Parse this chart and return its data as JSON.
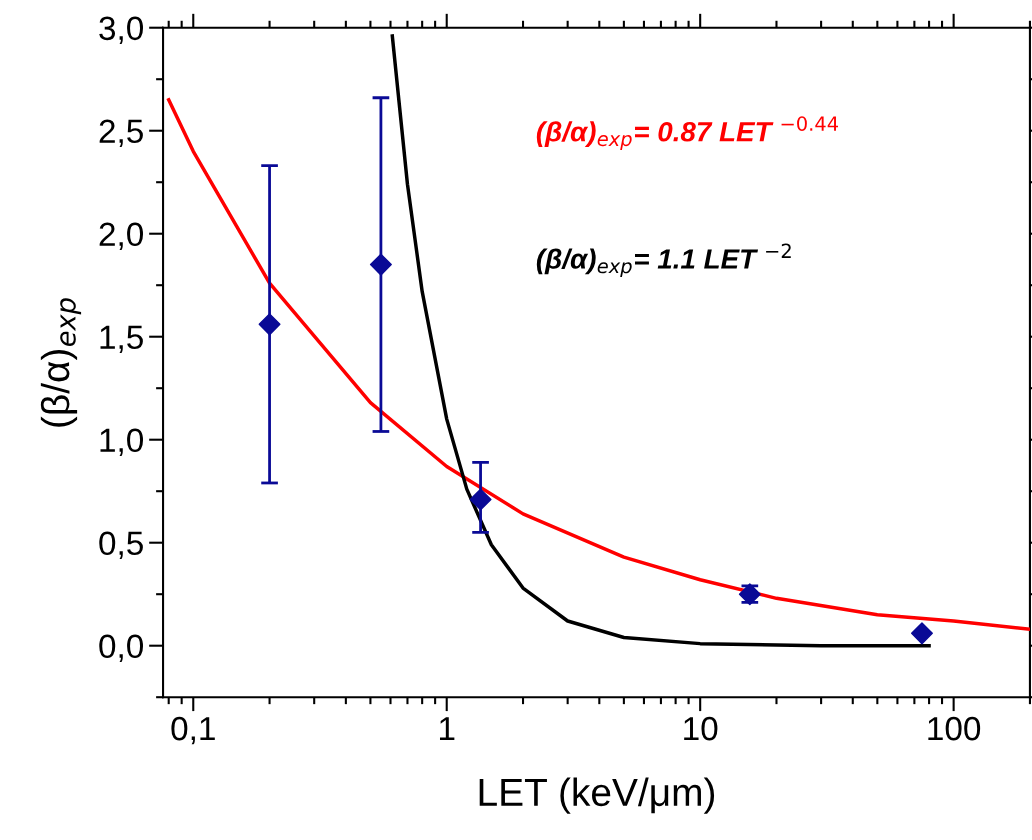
{
  "chart_data": {
    "type": "scatter",
    "xlabel": "LET (keV/μm)",
    "ylabel": "(β/α)$_{exp}$",
    "log": "x",
    "xlim": [
      0.076,
      200
    ],
    "xticks": [
      {
        "value": 0.1,
        "label": "0,1"
      },
      1,
      10,
      100
    ],
    "ylim": [
      -0.25,
      3.0
    ],
    "yticks": [
      {
        "value": 0,
        "label": "0,0"
      },
      {
        "value": 0.5,
        "label": "0,5"
      },
      {
        "value": 1,
        "label": "1,0"
      },
      {
        "value": 1.5,
        "label": "1,5"
      },
      {
        "value": 2,
        "label": "2,0"
      },
      {
        "value": 2.5,
        "label": "2,5"
      },
      {
        "value": 3,
        "label": "3,0"
      }
    ],
    "grid": false,
    "legend": false,
    "series": [
      {
        "marker": "diamond",
        "color": "#0a0a96",
        "x": [
          0.2,
          0.55,
          1.36,
          15.7,
          75
        ],
        "values": [
          1.56,
          1.85,
          0.71,
          0.25,
          0.06
        ],
        "errors": [
          [
            0.79,
            2.33
          ],
          [
            1.04,
            2.66
          ],
          [
            0.55,
            0.89
          ],
          [
            0.21,
            0.29
          ],
          null
        ]
      },
      {
        "type": "line",
        "color": "#ff0000",
        "x": [
          0.08,
          0.1,
          0.2,
          0.5,
          1,
          2,
          5,
          10,
          20,
          50,
          100,
          200
        ],
        "values": [
          2.65,
          2.4,
          1.76,
          1.18,
          0.87,
          0.64,
          0.43,
          0.32,
          0.23,
          0.15,
          0.12,
          0.08
        ]
      },
      {
        "type": "line",
        "color": "#000000",
        "x": [
          0.61,
          0.7,
          0.8,
          1,
          1.2,
          1.5,
          2,
          3,
          5,
          10,
          30,
          80
        ],
        "values": [
          2.96,
          2.24,
          1.72,
          1.1,
          0.76,
          0.49,
          0.28,
          0.12,
          0.04,
          0.01,
          0.0,
          0.0
        ]
      }
    ],
    "annotations": [
      "(β/α)$_{exp}$= 0.87 LET $^{−0.44}$",
      "(β/α)$_{exp}$= 1.1 LET $^{−2}$"
    ]
  }
}
